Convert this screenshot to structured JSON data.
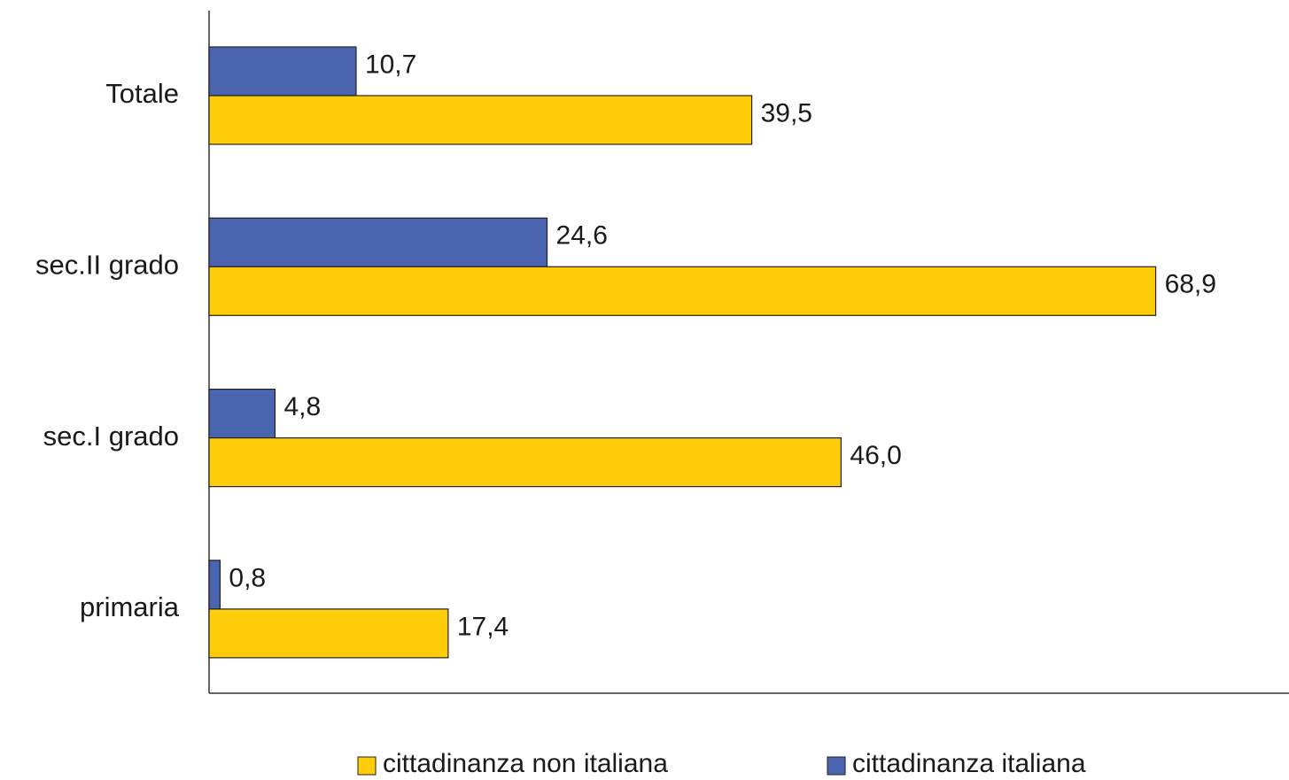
{
  "chart_data": {
    "type": "hbar",
    "categories": [
      "Totale",
      "sec.II grado",
      "sec.I grado",
      "primaria"
    ],
    "series": [
      {
        "name": "cittadinanza italiana",
        "color": "#4a64b0",
        "values": [
          10.7,
          24.6,
          4.8,
          0.8
        ],
        "value_labels": [
          "10,7",
          "24,6",
          "4,8",
          "0,8"
        ]
      },
      {
        "name": "cittadinanza non italiana",
        "color": "#ffcc0a",
        "values": [
          39.5,
          68.9,
          46.0,
          17.4
        ],
        "value_labels": [
          "39,5",
          "68,9",
          "46,0",
          "17,4"
        ]
      }
    ],
    "xlim": [
      0,
      78.6
    ],
    "legend": "bottom"
  }
}
